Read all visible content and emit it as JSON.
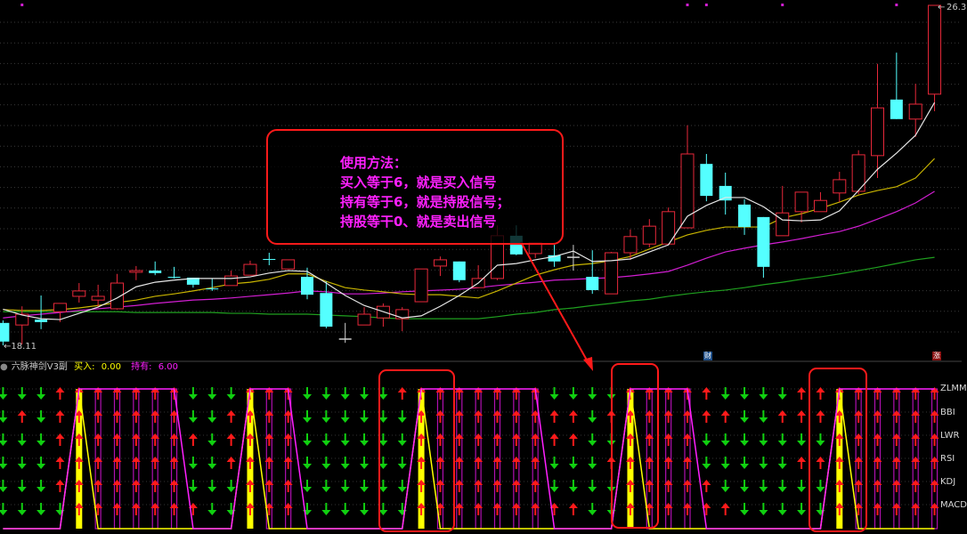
{
  "colors": {
    "up": "#e8283a",
    "down": "#54ffff",
    "ma5": "#e6e6e6",
    "ma10": "#c8b400",
    "ma20": "#d21ed2",
    "ma60": "#1fa01f",
    "buy": "#ffff00",
    "hold": "#ff20ff",
    "arrow_up": "#ff1a1a",
    "arrow_down": "#10d010",
    "annotation": "#ff1a1a"
  },
  "main_chart": {
    "price_high_label": "26.3",
    "price_low_label": "18.11",
    "top_markers_at": [
      1,
      36,
      37,
      41,
      47
    ],
    "badges": [
      {
        "text": "财",
        "color": "#1e4f8a"
      },
      {
        "text": "涨",
        "color": "#8a1010"
      }
    ]
  },
  "annotation": {
    "lines": [
      "使用方法：",
      "买入等于6，就是买入信号",
      "持有等于6，就是持股信号；",
      "持股等干0、就是卖出信号"
    ]
  },
  "sub_chart": {
    "title": "六脉神剑V3副",
    "buy_label": "买入:",
    "buy_value": "0.00",
    "hold_label": "持有:",
    "hold_value": "6.00",
    "indicators": [
      "ZLMM",
      "BBI",
      "LWR",
      "RSI",
      "KDJ",
      "MACD"
    ]
  },
  "chart_data": [
    {
      "type": "candlestick",
      "ylim": [
        18.11,
        26.3
      ],
      "ohlc": [
        [
          18.65,
          18.71,
          18.11,
          18.2
        ],
        [
          18.6,
          19.05,
          18.13,
          18.86
        ],
        [
          18.73,
          19.31,
          18.5,
          18.67
        ],
        [
          18.92,
          19.12,
          18.67,
          19.12
        ],
        [
          19.29,
          19.61,
          19.14,
          19.42
        ],
        [
          19.2,
          19.57,
          19.03,
          19.29
        ],
        [
          18.99,
          19.83,
          18.97,
          19.61
        ],
        [
          19.87,
          20.02,
          19.68,
          19.91
        ],
        [
          19.91,
          20.13,
          19.8,
          19.85
        ],
        [
          19.76,
          20.0,
          19.72,
          19.74
        ],
        [
          19.74,
          19.74,
          19.5,
          19.57
        ],
        [
          19.48,
          19.72,
          19.42,
          19.46
        ],
        [
          19.55,
          19.91,
          19.55,
          19.78
        ],
        [
          19.8,
          20.15,
          19.8,
          20.06
        ],
        [
          20.19,
          20.34,
          20.04,
          20.17
        ],
        [
          19.95,
          20.17,
          19.95,
          20.17
        ],
        [
          19.76,
          19.98,
          19.22,
          19.33
        ],
        [
          19.37,
          19.65,
          18.52,
          18.56
        ],
        [
          18.26,
          18.65,
          18.17,
          18.26
        ],
        [
          18.6,
          19.03,
          18.6,
          18.86
        ],
        [
          18.77,
          19.12,
          18.56,
          19.05
        ],
        [
          18.75,
          19.03,
          18.45,
          18.97
        ],
        [
          19.16,
          19.95,
          19.16,
          19.95
        ],
        [
          20.02,
          20.25,
          19.78,
          20.17
        ],
        [
          20.13,
          20.13,
          19.63,
          19.68
        ],
        [
          19.5,
          20.04,
          19.5,
          19.72
        ],
        [
          19.72,
          21.0,
          19.68,
          20.75
        ],
        [
          20.75,
          21.0,
          20.28,
          20.3
        ],
        [
          20.32,
          20.58,
          20.21,
          20.58
        ],
        [
          20.28,
          20.53,
          20.0,
          20.13
        ],
        [
          20.23,
          20.53,
          19.91,
          20.23
        ],
        [
          19.76,
          20.4,
          19.35,
          19.44
        ],
        [
          19.35,
          20.36,
          19.35,
          20.34
        ],
        [
          20.34,
          20.9,
          20.17,
          20.73
        ],
        [
          20.55,
          21.15,
          20.47,
          20.98
        ],
        [
          20.55,
          21.43,
          20.55,
          21.33
        ],
        [
          20.94,
          23.41,
          20.94,
          22.72
        ],
        [
          22.48,
          22.72,
          21.58,
          21.71
        ],
        [
          21.95,
          22.27,
          21.26,
          21.6
        ],
        [
          21.5,
          21.63,
          20.77,
          20.96
        ],
        [
          21.2,
          21.2,
          19.74,
          20.0
        ],
        [
          20.75,
          21.95,
          20.75,
          21.3
        ],
        [
          21.33,
          21.8,
          21.07,
          21.8
        ],
        [
          21.33,
          21.8,
          21.33,
          21.6
        ],
        [
          21.78,
          22.29,
          21.56,
          22.1
        ],
        [
          21.82,
          22.81,
          21.75,
          22.7
        ],
        [
          22.68,
          24.89,
          22.14,
          23.83
        ],
        [
          24.03,
          25.16,
          23.56,
          23.56
        ],
        [
          23.56,
          24.41,
          23.13,
          23.92
        ],
        [
          24.16,
          26.3,
          23.75,
          26.3
        ]
      ],
      "lines": {
        "ma5": [
          18.98,
          18.84,
          18.75,
          18.73,
          18.88,
          19.03,
          19.25,
          19.52,
          19.63,
          19.68,
          19.72,
          19.72,
          19.72,
          19.76,
          19.85,
          19.91,
          19.89,
          19.61,
          19.31,
          19.07,
          18.92,
          18.77,
          18.82,
          19.05,
          19.31,
          19.61,
          20.04,
          20.08,
          20.17,
          20.25,
          20.38,
          20.13,
          20.15,
          20.19,
          20.36,
          20.53,
          21.22,
          21.48,
          21.67,
          21.67,
          21.45,
          21.13,
          21.11,
          21.13,
          21.35,
          21.84,
          22.35,
          22.74,
          23.17,
          23.96
        ],
        "ma10": [
          18.97,
          18.95,
          18.95,
          18.97,
          19.01,
          19.07,
          19.14,
          19.2,
          19.29,
          19.35,
          19.42,
          19.5,
          19.59,
          19.63,
          19.7,
          19.83,
          19.83,
          19.65,
          19.5,
          19.44,
          19.4,
          19.35,
          19.33,
          19.33,
          19.29,
          19.25,
          19.42,
          19.61,
          19.8,
          19.93,
          20.04,
          20.08,
          20.15,
          20.25,
          20.43,
          20.6,
          20.77,
          20.88,
          20.96,
          20.96,
          20.96,
          21.18,
          21.28,
          21.41,
          21.56,
          21.73,
          21.84,
          21.93,
          22.14,
          22.61
        ],
        "ma20": [
          18.77,
          18.82,
          18.86,
          18.9,
          18.95,
          18.99,
          19.03,
          19.07,
          19.12,
          19.16,
          19.2,
          19.22,
          19.25,
          19.29,
          19.33,
          19.37,
          19.42,
          19.4,
          19.35,
          19.35,
          19.37,
          19.4,
          19.42,
          19.44,
          19.46,
          19.5,
          19.55,
          19.59,
          19.63,
          19.68,
          19.7,
          19.72,
          19.74,
          19.78,
          19.83,
          19.89,
          20.04,
          20.21,
          20.36,
          20.45,
          20.53,
          20.6,
          20.68,
          20.77,
          20.85,
          20.98,
          21.15,
          21.33,
          21.54,
          21.82
        ],
        "ma60": [
          18.92,
          18.92,
          18.92,
          18.92,
          18.92,
          18.92,
          18.92,
          18.9,
          18.9,
          18.9,
          18.9,
          18.9,
          18.88,
          18.88,
          18.86,
          18.86,
          18.86,
          18.84,
          18.82,
          18.8,
          18.77,
          18.75,
          18.75,
          18.75,
          18.75,
          18.75,
          18.8,
          18.86,
          18.9,
          18.97,
          19.01,
          19.07,
          19.12,
          19.18,
          19.22,
          19.29,
          19.35,
          19.4,
          19.44,
          19.5,
          19.57,
          19.63,
          19.7,
          19.76,
          19.83,
          19.91,
          19.99,
          20.08,
          20.17,
          20.23
        ]
      }
    },
    {
      "type": "signal",
      "ylim": [
        0,
        6
      ],
      "buy_columns": [
        4,
        13,
        22,
        33,
        44
      ],
      "hold_ranges": [
        [
          4,
          9
        ],
        [
          13,
          15
        ],
        [
          22,
          28
        ],
        [
          33,
          36
        ],
        [
          44,
          49
        ]
      ],
      "value_when_on": 6,
      "signals": {
        "ZLMM": "GGGRRRRRRRGGGRRRGGGGGRRRRRRRRGGGGRRRRRGGGGRRRRRRRR",
        "BBI": "GRGRRRRRRRGGRRRRGGGGGGRRRRRRRRRGRRRRRRRGGRRRRRRRRR",
        "LWR": "GGGRRRRRRRRGRRRRGGGGGGRRRRRRRRRGGRRRRGGGGGGGRRRRRR",
        "RSI": "GGGRRRRRRRGGRRRRGGGGGGRRRRRRRGGGRRRRRGGGGGRRRRRRRR",
        "KDJ": "GGGRRRRRRRGGGRRRGGGGGGRRRRRRRGGGGRRRRRGGGGGGRRRRRR",
        "MACD": "GGGGRRRRRRRGGRRRGGGGGGRRRRRRRRRGGRRRRRRGGGGGRRRRRR"
      }
    }
  ]
}
